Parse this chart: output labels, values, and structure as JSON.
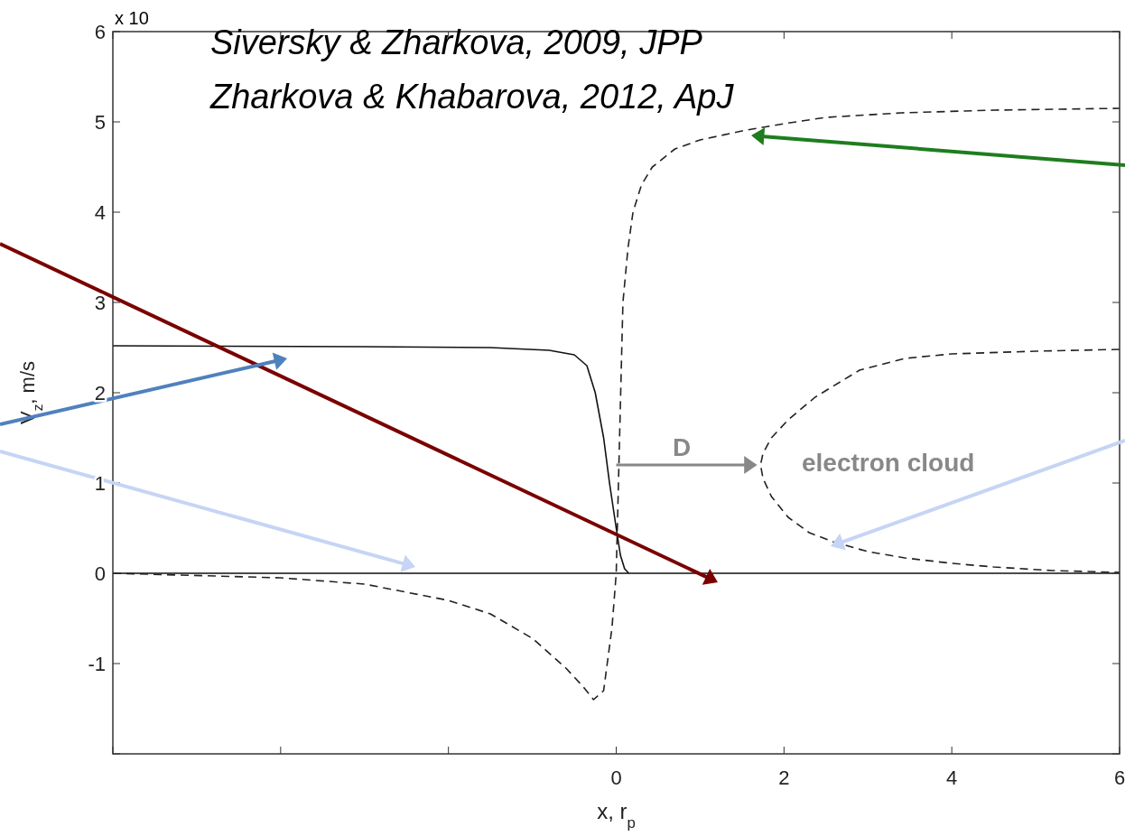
{
  "chart_data": {
    "type": "line",
    "xlabel": "x, r$_{p}$",
    "ylabel": "V$_{z}$, m/s",
    "xlim": [
      -6,
      6
    ],
    "ylim": [
      -2,
      6
    ],
    "xticks": [
      {
        "value": -6,
        "label": null
      },
      {
        "value": -4,
        "label": null
      },
      {
        "value": -2,
        "label": null
      },
      0,
      2,
      4,
      6
    ],
    "yticks": [
      {
        "value": -2,
        "label": null
      },
      -1,
      0,
      1,
      2,
      3,
      4,
      5,
      6
    ],
    "grid": false,
    "marker": "none",
    "annotations": [
      "Siversky & Zharkova, 2009, JPP",
      "Zharkova & Khabarova, 2012, ApJ",
      "x 10",
      "D",
      "electron cloud"
    ],
    "series": [
      {
        "color": "#111111",
        "line_style": "solid",
        "x": [
          -6,
          -3,
          -1.5,
          -0.8,
          -0.5,
          -0.35,
          -0.25,
          -0.15,
          -0.08,
          0,
          0.05,
          0.1,
          0.15
        ],
        "values": [
          2.52,
          2.51,
          2.5,
          2.47,
          2.42,
          2.3,
          2.0,
          1.5,
          1.0,
          0.5,
          0.2,
          0.05,
          0
        ]
      },
      {
        "color": "#111111",
        "line_style": "solid",
        "x": [
          -6,
          6
        ],
        "values": [
          0,
          0
        ]
      },
      {
        "color": "#222222",
        "line_style": "dashed",
        "x": [
          -6,
          -4,
          -3,
          -2,
          -1.5,
          -1,
          -0.6,
          -0.4,
          -0.27,
          -0.15,
          -0.05,
          0,
          0.04,
          0.08,
          0.14,
          0.2,
          0.3,
          0.43,
          0.7,
          1,
          1.5,
          2,
          2.5,
          3.4,
          4.5,
          6
        ],
        "values": [
          0,
          -0.05,
          -0.12,
          -0.3,
          -0.45,
          -0.72,
          -1.05,
          -1.25,
          -1.4,
          -1.3,
          -0.6,
          0,
          1.5,
          3,
          3.6,
          4,
          4.3,
          4.5,
          4.7,
          4.8,
          4.9,
          4.98,
          5.05,
          5.1,
          5.13,
          5.15
        ]
      },
      {
        "color": "#222222",
        "line_style": "dashed",
        "x": [
          6,
          5,
          4,
          3.44,
          2.9,
          2.37,
          2.05,
          1.85,
          1.75,
          1.72,
          1.75,
          1.85,
          2.05,
          2.3,
          2.58,
          3.0,
          3.44,
          4.0,
          4.5,
          5.2,
          6
        ],
        "values": [
          2.48,
          2.46,
          2.43,
          2.38,
          2.25,
          1.95,
          1.7,
          1.5,
          1.33,
          1.2,
          1.05,
          0.85,
          0.62,
          0.45,
          0.35,
          0.24,
          0.17,
          0.11,
          0.07,
          0.03,
          0.01
        ]
      }
    ]
  }
}
